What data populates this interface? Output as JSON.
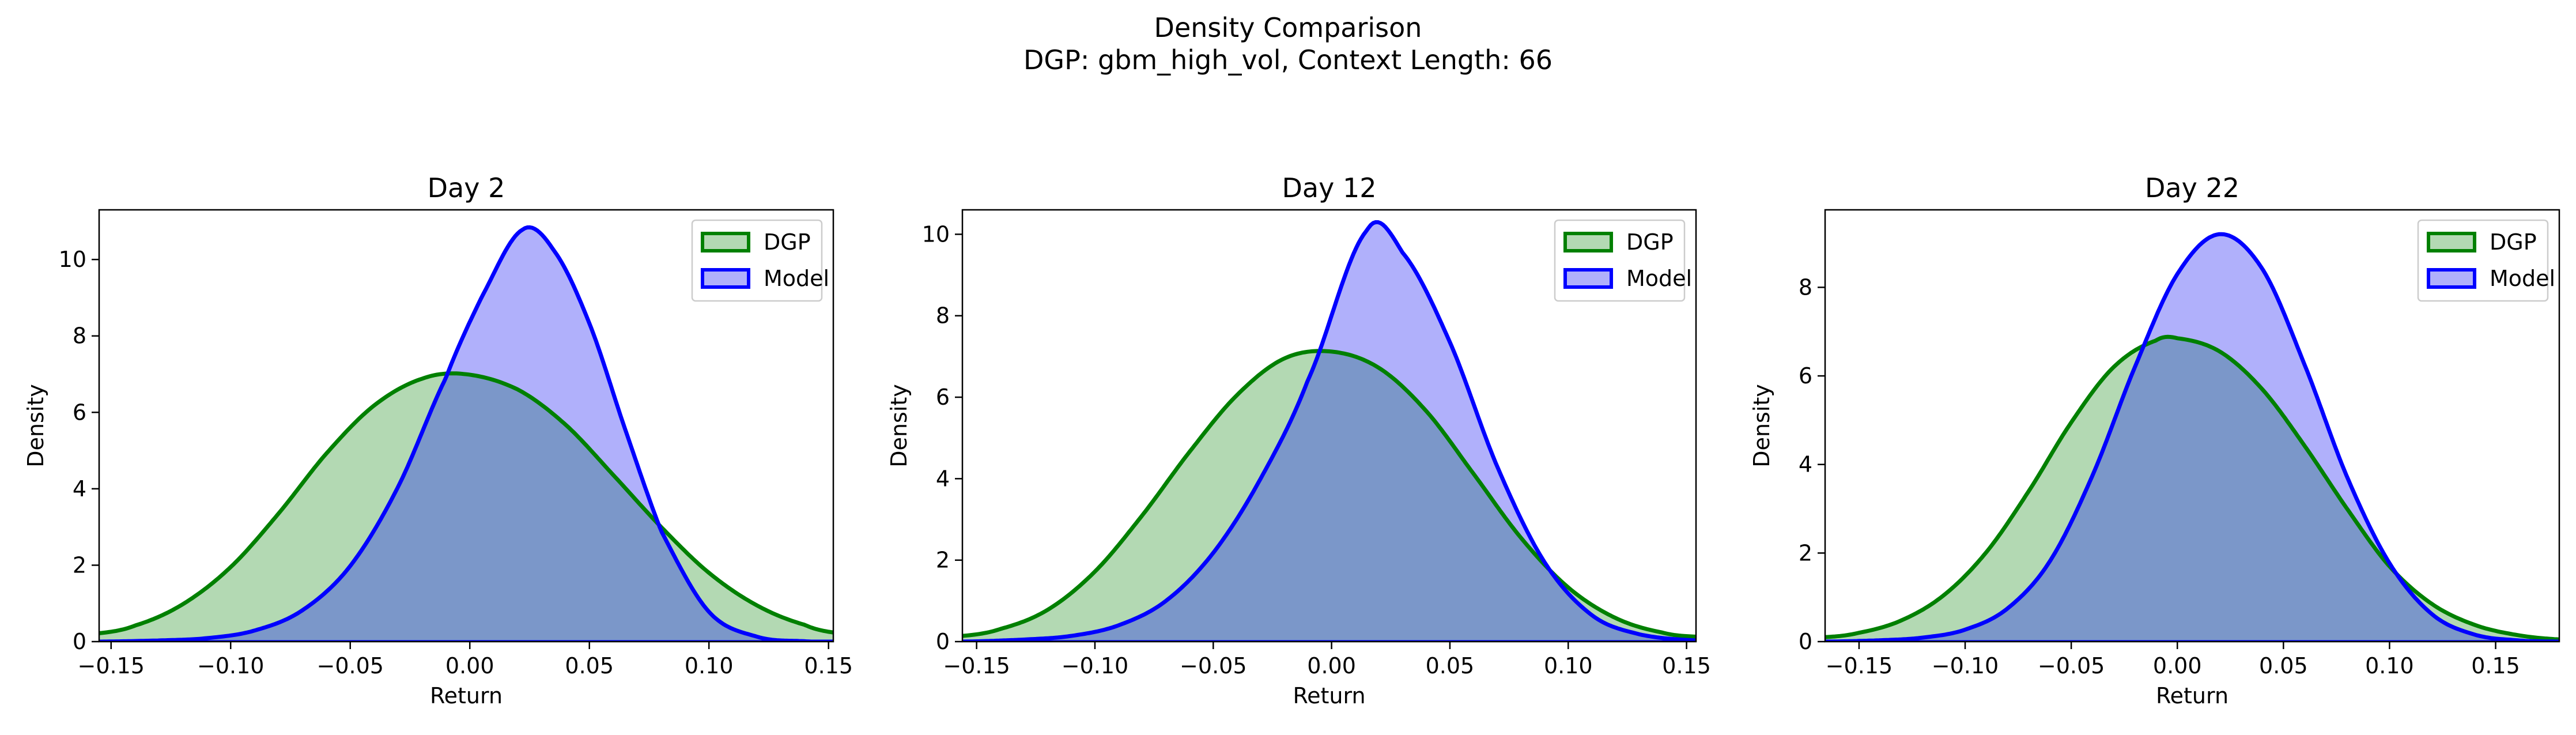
{
  "figure": {
    "title": "Density Comparison",
    "subtitle": "DGP: gbm_high_vol, Context Length: 66"
  },
  "colors": {
    "dgp_line": "#008000",
    "dgp_fill": "#b3d9b3",
    "model_line": "#0000ff",
    "model_fill": "#b0b0fb",
    "overlap_fill": "#7b97c9"
  },
  "chart_data": [
    {
      "type": "area",
      "title": "Day 2",
      "xlabel": "Return",
      "ylabel": "Density",
      "xlim": [
        -0.155,
        0.152
      ],
      "ylim": [
        0,
        11.3
      ],
      "xticks": [
        -0.15,
        -0.1,
        -0.05,
        0.0,
        0.05,
        0.1,
        0.15
      ],
      "xtick_labels": [
        "−0.15",
        "−0.10",
        "−0.05",
        "0.00",
        "0.05",
        "0.10",
        "0.15"
      ],
      "yticks": [
        0,
        2,
        4,
        6,
        8,
        10
      ],
      "ytick_labels": [
        "0",
        "2",
        "4",
        "6",
        "8",
        "10"
      ],
      "grid": false,
      "legend_position": "top-right",
      "series": [
        {
          "name": "DGP",
          "x": [
            -0.155,
            -0.14,
            -0.12,
            -0.1,
            -0.08,
            -0.06,
            -0.04,
            -0.02,
            -0.002,
            0.02,
            0.04,
            0.06,
            0.08,
            0.1,
            0.12,
            0.14,
            0.152
          ],
          "y": [
            0.22,
            0.42,
            0.98,
            1.95,
            3.35,
            4.92,
            6.18,
            6.88,
            7.0,
            6.6,
            5.68,
            4.36,
            3.0,
            1.8,
            0.95,
            0.44,
            0.24
          ]
        },
        {
          "name": "Model",
          "x": [
            -0.155,
            -0.13,
            -0.11,
            -0.09,
            -0.07,
            -0.05,
            -0.03,
            -0.01,
            0.005,
            0.022,
            0.035,
            0.05,
            0.065,
            0.08,
            0.1,
            0.12,
            0.14,
            0.152
          ],
          "y": [
            0.0,
            0.03,
            0.09,
            0.29,
            0.82,
            1.98,
            4.05,
            6.9,
            9.02,
            10.78,
            10.25,
            8.33,
            5.55,
            2.9,
            0.78,
            0.13,
            0.01,
            0.0
          ]
        }
      ]
    },
    {
      "type": "area",
      "title": "Day 12",
      "xlabel": "Return",
      "ylabel": "Density",
      "xlim": [
        -0.156,
        0.154
      ],
      "ylim": [
        0,
        10.6
      ],
      "xticks": [
        -0.15,
        -0.1,
        -0.05,
        0.0,
        0.05,
        0.1,
        0.15
      ],
      "xtick_labels": [
        "−0.15",
        "−0.10",
        "−0.05",
        "0.00",
        "0.05",
        "0.10",
        "0.15"
      ],
      "yticks": [
        0,
        2,
        4,
        6,
        8,
        10
      ],
      "ytick_labels": [
        "0",
        "2",
        "4",
        "6",
        "8",
        "10"
      ],
      "grid": false,
      "legend_position": "top-right",
      "series": [
        {
          "name": "DGP",
          "x": [
            -0.156,
            -0.14,
            -0.12,
            -0.1,
            -0.08,
            -0.06,
            -0.04,
            -0.02,
            0.0,
            0.02,
            0.04,
            0.06,
            0.08,
            0.1,
            0.12,
            0.14,
            0.154
          ],
          "y": [
            0.14,
            0.31,
            0.78,
            1.72,
            3.1,
            4.66,
            6.05,
            6.95,
            7.12,
            6.72,
            5.66,
            4.12,
            2.55,
            1.33,
            0.58,
            0.22,
            0.12
          ]
        },
        {
          "name": "Model",
          "x": [
            -0.156,
            -0.13,
            -0.11,
            -0.09,
            -0.07,
            -0.05,
            -0.03,
            -0.01,
            0.015,
            0.03,
            0.05,
            0.07,
            0.09,
            0.11,
            0.13,
            0.154
          ],
          "y": [
            0.0,
            0.05,
            0.14,
            0.4,
            1.0,
            2.18,
            4.0,
            6.42,
            10.1,
            9.55,
            7.35,
            4.3,
            1.95,
            0.65,
            0.18,
            0.03
          ]
        }
      ]
    },
    {
      "type": "area",
      "title": "Day 22",
      "xlabel": "Return",
      "ylabel": "Density",
      "xlim": [
        -0.166,
        0.18
      ],
      "ylim": [
        0,
        9.75
      ],
      "xticks": [
        -0.15,
        -0.1,
        -0.05,
        0.0,
        0.05,
        0.1,
        0.15
      ],
      "xtick_labels": [
        "−0.15",
        "−0.10",
        "−0.05",
        "0.00",
        "0.05",
        "0.10",
        "0.15"
      ],
      "yticks": [
        0,
        2,
        4,
        6,
        8
      ],
      "ytick_labels": [
        "0",
        "2",
        "4",
        "6",
        "8"
      ],
      "grid": false,
      "legend_position": "top-right",
      "series": [
        {
          "name": "DGP",
          "x": [
            -0.166,
            -0.15,
            -0.13,
            -0.11,
            -0.09,
            -0.07,
            -0.05,
            -0.03,
            -0.01,
            0.0,
            0.02,
            0.04,
            0.06,
            0.08,
            0.1,
            0.12,
            0.14,
            0.16,
            0.18
          ],
          "y": [
            0.1,
            0.2,
            0.48,
            1.05,
            2.02,
            3.4,
            4.95,
            6.2,
            6.8,
            6.85,
            6.55,
            5.7,
            4.42,
            3.0,
            1.7,
            0.85,
            0.38,
            0.15,
            0.05
          ]
        },
        {
          "name": "Model",
          "x": [
            -0.166,
            -0.14,
            -0.12,
            -0.1,
            -0.08,
            -0.06,
            -0.04,
            -0.02,
            0.0,
            0.02,
            0.04,
            0.06,
            0.08,
            0.1,
            0.12,
            0.14,
            0.16,
            0.18
          ],
          "y": [
            0.0,
            0.03,
            0.09,
            0.27,
            0.75,
            1.82,
            3.75,
            6.2,
            8.3,
            9.2,
            8.42,
            6.25,
            3.72,
            1.77,
            0.62,
            0.16,
            0.03,
            0.0
          ]
        }
      ]
    }
  ]
}
